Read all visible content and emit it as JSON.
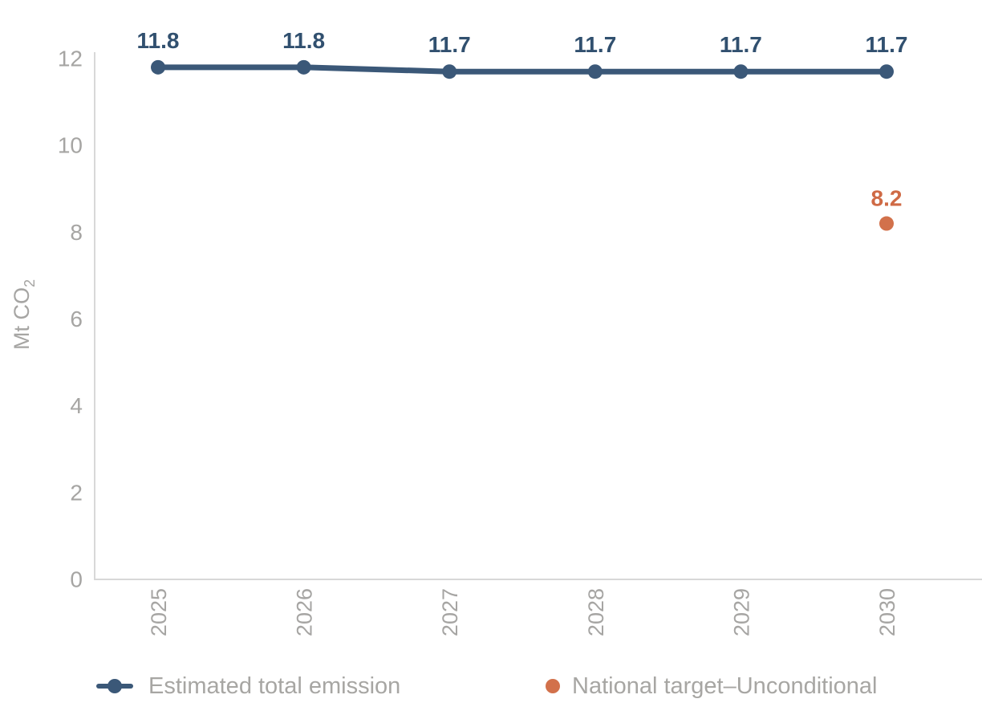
{
  "chart_data": {
    "type": "line",
    "title": "",
    "categories": [
      "2025",
      "2026",
      "2027",
      "2028",
      "2029",
      "2030"
    ],
    "series": [
      {
        "name": "Estimated total emission",
        "values": [
          11.8,
          11.8,
          11.7,
          11.7,
          11.7,
          11.7
        ],
        "labels": [
          "11.8",
          "11.8",
          "11.7",
          "11.7",
          "11.7",
          "11.7"
        ],
        "color": "#3b5878",
        "marker": "line-dot"
      },
      {
        "name": "National target–Unconditional",
        "values": [
          null,
          null,
          null,
          null,
          null,
          8.2
        ],
        "labels": [
          "",
          "",
          "",
          "",
          "",
          "8.2"
        ],
        "color": "#d2714b",
        "marker": "dot"
      }
    ],
    "xlabel": "",
    "ylabel": "Mt CO₂",
    "ylabel_main": "Mt CO",
    "ylabel_sub": "2",
    "yticks": [
      0,
      2,
      4,
      6,
      8,
      10,
      12
    ],
    "ylim": [
      0,
      12
    ],
    "grid": false,
    "legend_position": "bottom"
  },
  "colors": {
    "axis_line": "#d8d8d8",
    "tick_text": "#a6a5a3",
    "legend_text": "#a7a6a3",
    "series_line": "#3b5878",
    "series_label": "#31506f",
    "target_dot": "#d2714b",
    "target_label": "#cf6a45",
    "background": "#ffffff"
  }
}
